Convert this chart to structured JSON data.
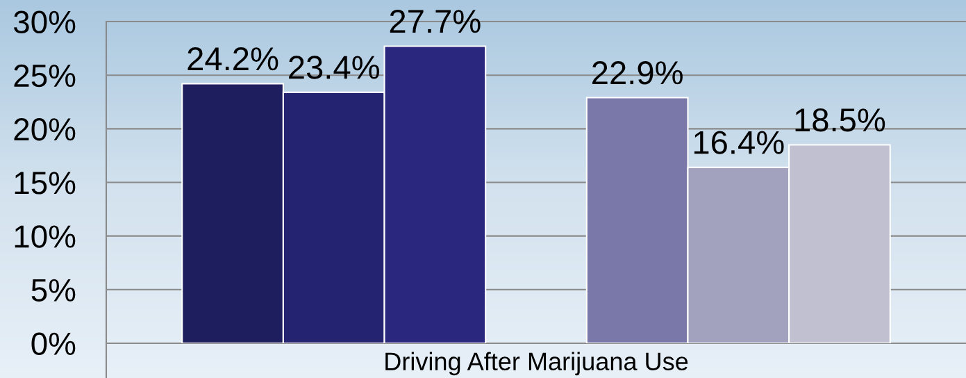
{
  "chart_data": {
    "type": "bar",
    "categories": [
      "Driving After Marijuana Use"
    ],
    "series": [
      {
        "color": "#1e1d5e",
        "values": [
          24.2
        ],
        "value_labels": [
          "24.2%"
        ]
      },
      {
        "color": "#242372",
        "values": [
          23.4
        ],
        "value_labels": [
          "23.4%"
        ]
      },
      {
        "color": "#29287e",
        "values": [
          27.7
        ],
        "value_labels": [
          "27.7%"
        ]
      },
      {
        "values": [
          null
        ]
      },
      {
        "color": "#7a78a8",
        "values": [
          22.9
        ],
        "value_labels": [
          "22.9%"
        ]
      },
      {
        "color": "#a3a2be",
        "values": [
          16.4
        ],
        "value_labels": [
          "16.4%"
        ]
      },
      {
        "color": "#c0c0d1",
        "values": [
          18.5
        ],
        "value_labels": [
          "18.5%"
        ]
      }
    ],
    "ylim": [
      0,
      30
    ],
    "yticks": [
      {
        "value": 0,
        "label": "0%"
      },
      {
        "value": 5,
        "label": "5%"
      },
      {
        "value": 10,
        "label": "10%"
      },
      {
        "value": 15,
        "label": "15%"
      },
      {
        "value": 20,
        "label": "20%"
      },
      {
        "value": 25,
        "label": "25%"
      },
      {
        "value": 30,
        "label": "30%"
      }
    ],
    "grid": "y"
  }
}
